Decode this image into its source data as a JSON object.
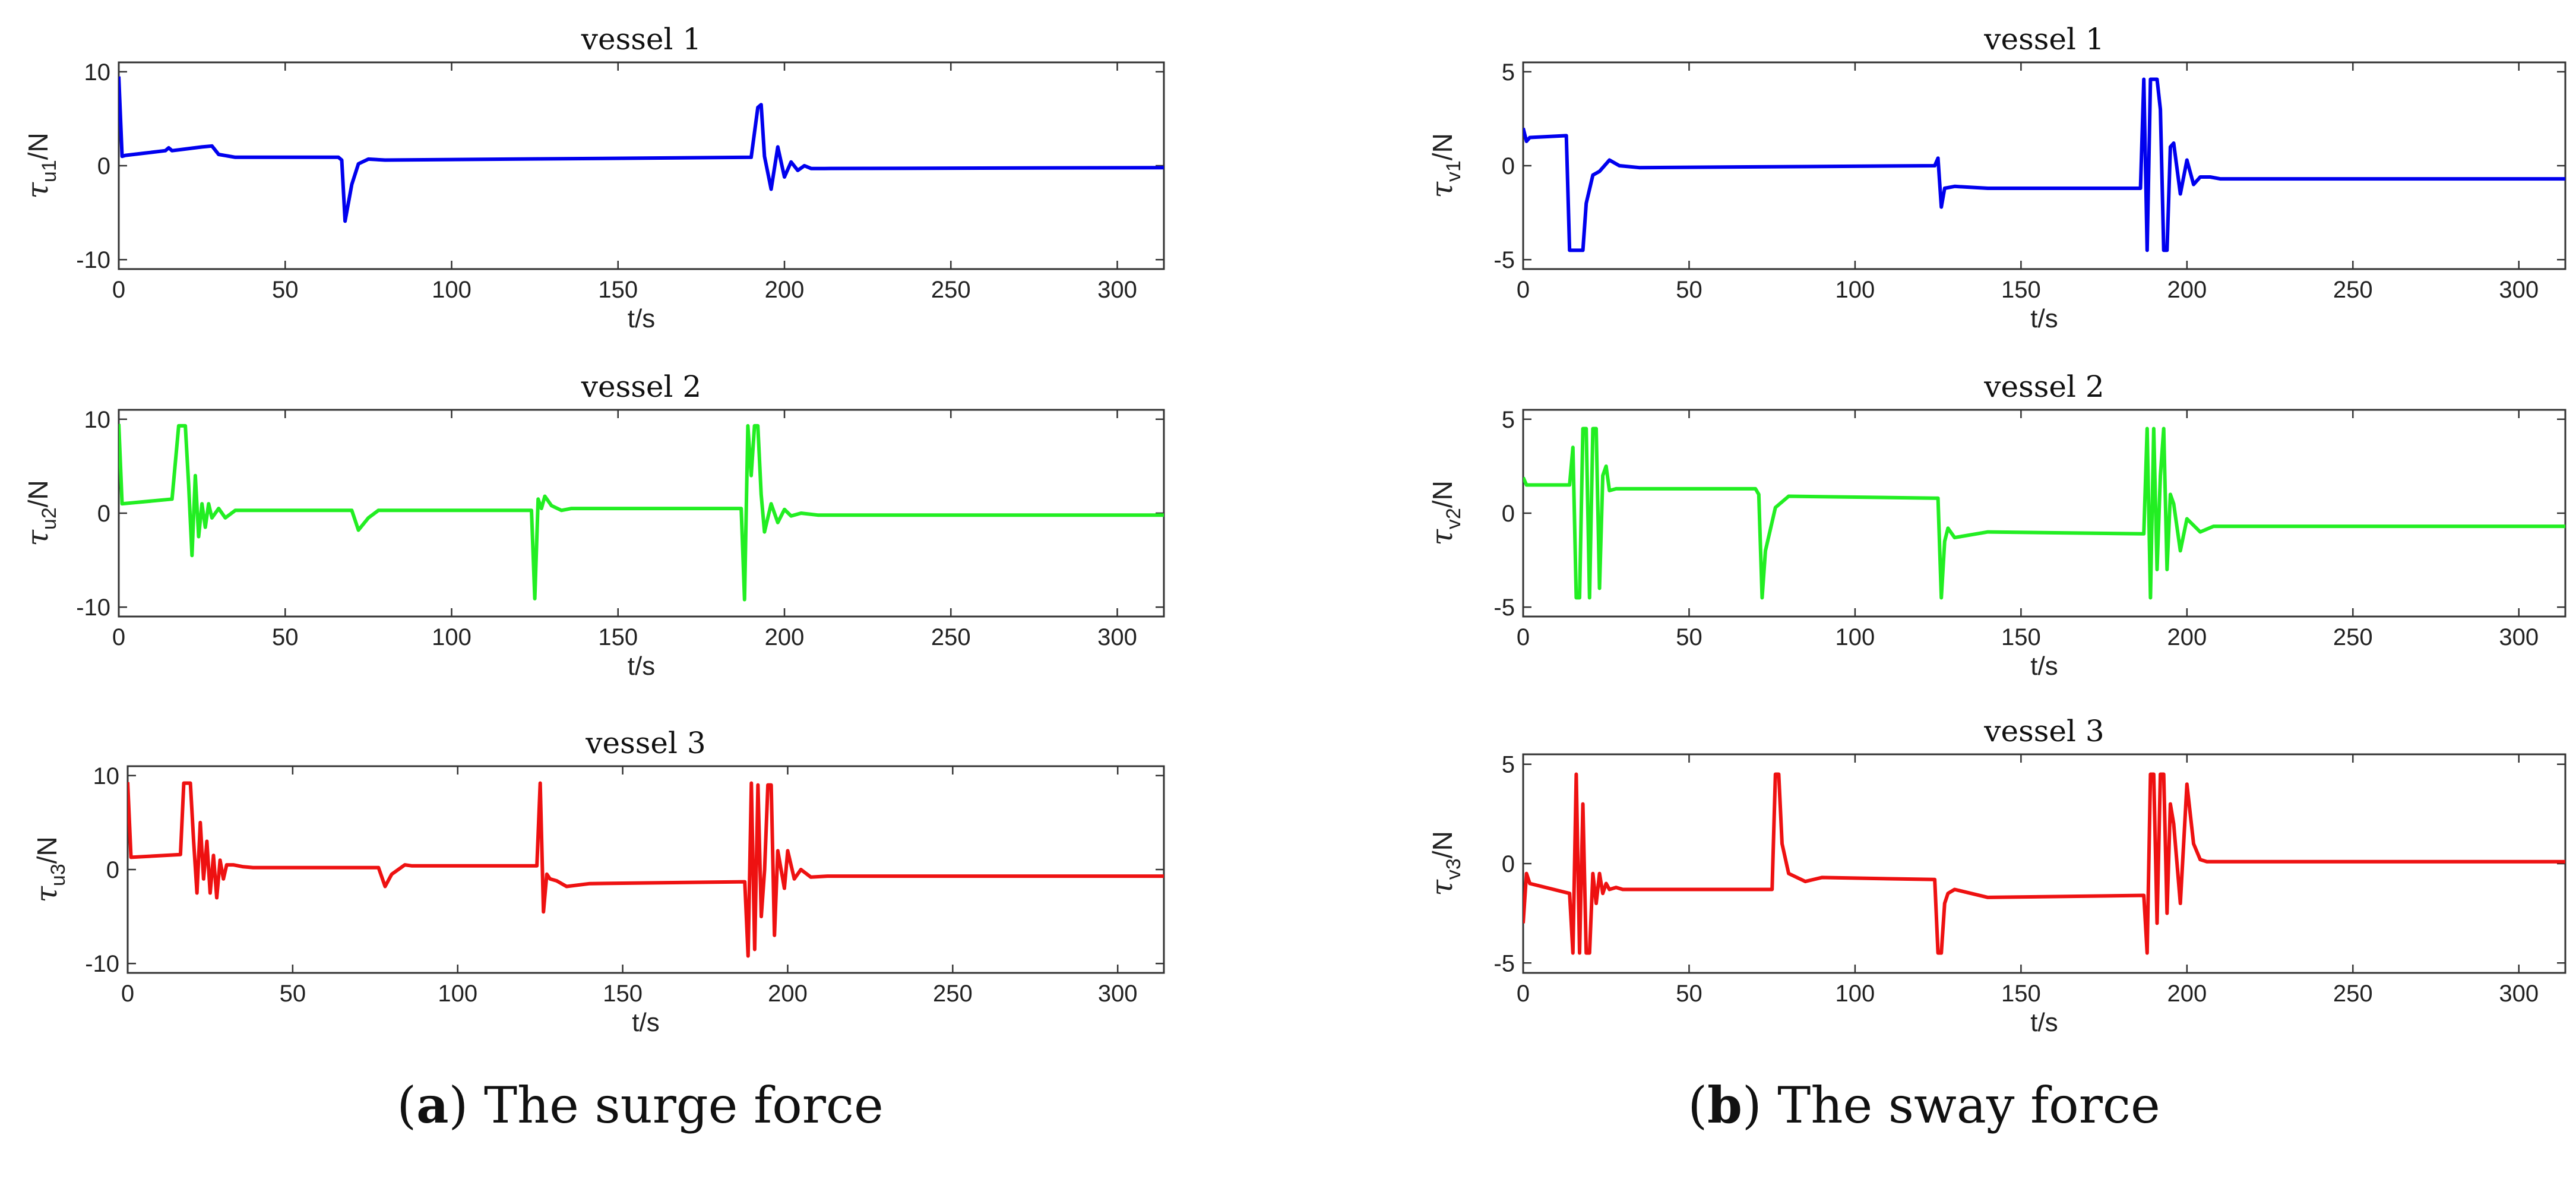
{
  "chart_data": [
    {
      "panel": "a",
      "type": "line",
      "title": "vessel 1",
      "xlabel": "t/s",
      "ylabel": {
        "symbol": "τ",
        "sub": "u1",
        "unit": "/N"
      },
      "xlim": [
        0,
        314
      ],
      "ylim": [
        -11,
        11
      ],
      "xticks": [
        0,
        50,
        100,
        150,
        200,
        250,
        300
      ],
      "yticks": [
        -10,
        0,
        10
      ],
      "color": "#0000ee",
      "series": [
        {
          "name": "surge force vessel 1",
          "x": [
            0,
            1,
            2,
            14,
            15,
            16,
            25,
            28,
            30,
            35,
            66,
            67,
            68,
            70,
            72,
            75,
            80,
            190,
            192,
            193,
            194,
            196,
            198,
            200,
            202,
            204,
            206,
            208,
            212,
            314
          ],
          "y": [
            9.5,
            1.0,
            1.1,
            1.6,
            1.9,
            1.6,
            2.0,
            2.1,
            1.2,
            0.9,
            0.9,
            0.6,
            -5.9,
            -2.0,
            0.2,
            0.7,
            0.6,
            0.9,
            6.2,
            6.5,
            1.0,
            -2.5,
            2.0,
            -1.2,
            0.4,
            -0.5,
            0.0,
            -0.3,
            -0.3,
            -0.2
          ]
        }
      ]
    },
    {
      "panel": "a",
      "type": "line",
      "title": "vessel 2",
      "xlabel": "t/s",
      "ylabel": {
        "symbol": "τ",
        "sub": "u2",
        "unit": "/N"
      },
      "xlim": [
        0,
        314
      ],
      "ylim": [
        -11,
        11
      ],
      "xticks": [
        0,
        50,
        100,
        150,
        200,
        250,
        300
      ],
      "yticks": [
        -10,
        0,
        10
      ],
      "color": "#22ee22",
      "series": [
        {
          "name": "surge force vessel 2",
          "x": [
            0,
            1,
            16,
            18,
            20,
            21,
            22,
            23,
            24,
            25,
            26,
            27,
            28,
            30,
            32,
            35,
            38,
            70,
            72,
            75,
            78,
            80,
            124,
            125,
            126,
            127,
            128,
            130,
            133,
            136,
            140,
            187,
            188,
            189,
            190,
            191,
            192,
            193,
            194,
            196,
            198,
            200,
            202,
            205,
            210,
            314
          ],
          "y": [
            9.5,
            1.0,
            1.5,
            9.3,
            9.3,
            3.0,
            -4.5,
            4.0,
            -2.5,
            1.0,
            -1.5,
            1.0,
            -0.5,
            0.5,
            -0.5,
            0.3,
            0.3,
            0.3,
            -1.8,
            -0.5,
            0.3,
            0.3,
            0.3,
            -9.1,
            1.5,
            0.5,
            1.8,
            0.8,
            0.3,
            0.5,
            0.5,
            0.5,
            -9.2,
            9.3,
            4.0,
            9.3,
            9.3,
            2.0,
            -2.0,
            1.0,
            -1.0,
            0.4,
            -0.3,
            0.0,
            -0.2,
            -0.2
          ]
        }
      ]
    },
    {
      "panel": "a",
      "type": "line",
      "title": "vessel 3",
      "xlabel": "t/s",
      "ylabel": {
        "symbol": "τ",
        "sub": "u3",
        "unit": "/N"
      },
      "xlim": [
        0,
        314
      ],
      "ylim": [
        -11,
        11
      ],
      "xticks": [
        0,
        50,
        100,
        150,
        200,
        250,
        300
      ],
      "yticks": [
        -10,
        0,
        10
      ],
      "color": "#ee1111",
      "series": [
        {
          "name": "surge force vessel 3",
          "x": [
            0,
            1,
            16,
            17,
            19,
            20,
            21,
            22,
            23,
            24,
            25,
            26,
            27,
            28,
            29,
            30,
            32,
            35,
            38,
            76,
            78,
            80,
            84,
            86,
            124,
            125,
            126,
            127,
            128,
            130,
            133,
            140,
            187,
            188,
            189,
            190,
            191,
            192,
            193,
            194,
            195,
            196,
            197,
            199,
            200,
            202,
            204,
            207,
            212,
            314
          ],
          "y": [
            9.3,
            1.3,
            1.6,
            9.2,
            9.2,
            3.0,
            -2.5,
            5.0,
            -1.0,
            3.0,
            -2.5,
            1.5,
            -3.0,
            1.0,
            -1.0,
            0.5,
            0.5,
            0.3,
            0.2,
            0.2,
            -1.8,
            -0.5,
            0.5,
            0.4,
            0.4,
            9.2,
            -4.5,
            -0.5,
            -1.0,
            -1.2,
            -1.8,
            -1.5,
            -1.3,
            -9.2,
            9.2,
            -8.5,
            9.0,
            -5.0,
            0.0,
            9.0,
            9.0,
            -7.0,
            2.0,
            -2.0,
            2.0,
            -1.0,
            0.0,
            -0.8,
            -0.7,
            -0.7
          ]
        }
      ]
    },
    {
      "panel": "b",
      "type": "line",
      "title": "vessel 1",
      "xlabel": "t/s",
      "ylabel": {
        "symbol": "τ",
        "sub": "v1",
        "unit": "/N"
      },
      "xlim": [
        0,
        314
      ],
      "ylim": [
        -5.5,
        5.5
      ],
      "xticks": [
        0,
        50,
        100,
        150,
        200,
        250,
        300
      ],
      "yticks": [
        -5,
        0,
        5
      ],
      "color": "#0000ee",
      "series": [
        {
          "name": "sway force vessel 1",
          "x": [
            0,
            1,
            2,
            13,
            14,
            15,
            18,
            19,
            21,
            23,
            26,
            29,
            35,
            124,
            125,
            126,
            127,
            130,
            140,
            186,
            187,
            188,
            189,
            190,
            191,
            192,
            193,
            194,
            195,
            196,
            198,
            200,
            202,
            204,
            207,
            210,
            314
          ],
          "y": [
            2.0,
            1.3,
            1.5,
            1.6,
            -4.5,
            -4.5,
            -4.5,
            -2.0,
            -0.5,
            -0.3,
            0.3,
            0.0,
            -0.1,
            0.0,
            0.4,
            -2.2,
            -1.2,
            -1.1,
            -1.2,
            -1.2,
            4.6,
            -4.5,
            4.6,
            4.6,
            4.6,
            3.0,
            -4.5,
            -4.5,
            1.0,
            1.2,
            -1.5,
            0.3,
            -1.0,
            -0.6,
            -0.6,
            -0.7,
            -0.7
          ]
        }
      ]
    },
    {
      "panel": "b",
      "type": "line",
      "title": "vessel 2",
      "xlabel": "t/s",
      "ylabel": {
        "symbol": "τ",
        "sub": "v2",
        "unit": "/N"
      },
      "xlim": [
        0,
        314
      ],
      "ylim": [
        -5.5,
        5.5
      ],
      "xticks": [
        0,
        50,
        100,
        150,
        200,
        250,
        300
      ],
      "yticks": [
        -5,
        0,
        5
      ],
      "color": "#22ee22",
      "series": [
        {
          "name": "sway force vessel 2",
          "x": [
            0,
            1,
            14,
            15,
            16,
            17,
            18,
            19,
            20,
            21,
            22,
            23,
            24,
            25,
            26,
            28,
            35,
            70,
            71,
            72,
            73,
            76,
            80,
            124,
            125,
            126,
            127,
            128,
            130,
            140,
            187,
            188,
            189,
            190,
            191,
            192,
            193,
            194,
            195,
            196,
            198,
            200,
            204,
            208,
            314
          ],
          "y": [
            1.9,
            1.5,
            1.5,
            3.5,
            -4.5,
            -4.5,
            4.5,
            4.5,
            -4.5,
            4.5,
            4.5,
            -4.0,
            2.0,
            2.5,
            1.2,
            1.3,
            1.3,
            1.3,
            1.0,
            -4.5,
            -2.0,
            0.3,
            0.9,
            0.8,
            0.8,
            -4.5,
            -1.5,
            -0.8,
            -1.3,
            -1.0,
            -1.1,
            4.5,
            -4.5,
            4.5,
            -3.0,
            2.0,
            4.5,
            -3.0,
            1.0,
            0.5,
            -2.0,
            -0.3,
            -1.0,
            -0.7,
            -0.7
          ]
        }
      ]
    },
    {
      "panel": "b",
      "type": "line",
      "title": "vessel 3",
      "xlabel": "t/s",
      "ylabel": {
        "symbol": "τ",
        "sub": "v3",
        "unit": "/N"
      },
      "xlim": [
        0,
        314
      ],
      "ylim": [
        -5.5,
        5.5
      ],
      "xticks": [
        0,
        50,
        100,
        150,
        200,
        250,
        300
      ],
      "yticks": [
        -5,
        0,
        5
      ],
      "color": "#ee1111",
      "series": [
        {
          "name": "sway force vessel 3",
          "x": [
            0,
            1,
            2,
            14,
            15,
            16,
            17,
            18,
            19,
            20,
            21,
            22,
            23,
            24,
            25,
            26,
            28,
            30,
            35,
            75,
            76,
            77,
            78,
            80,
            85,
            90,
            124,
            125,
            126,
            127,
            128,
            130,
            140,
            187,
            188,
            189,
            190,
            191,
            192,
            193,
            194,
            195,
            196,
            198,
            200,
            202,
            204,
            206,
            208,
            314
          ],
          "y": [
            -3.0,
            -0.5,
            -1.0,
            -1.5,
            -4.5,
            4.5,
            -4.5,
            3.0,
            -4.5,
            -4.5,
            -0.5,
            -2.0,
            -0.5,
            -1.5,
            -1.0,
            -1.3,
            -1.2,
            -1.3,
            -1.3,
            -1.3,
            4.5,
            4.5,
            1.0,
            -0.5,
            -0.9,
            -0.7,
            -0.8,
            -4.5,
            -4.5,
            -2.0,
            -1.5,
            -1.3,
            -1.7,
            -1.6,
            -4.5,
            4.5,
            4.5,
            -3.0,
            4.5,
            4.5,
            -2.5,
            3.0,
            2.0,
            -2.0,
            4.0,
            1.0,
            0.2,
            0.1,
            0.1,
            0.1
          ]
        }
      ]
    }
  ],
  "captions": [
    {
      "letter": "a",
      "text": " The surge force"
    },
    {
      "letter": "b",
      "text": " The sway force"
    }
  ]
}
